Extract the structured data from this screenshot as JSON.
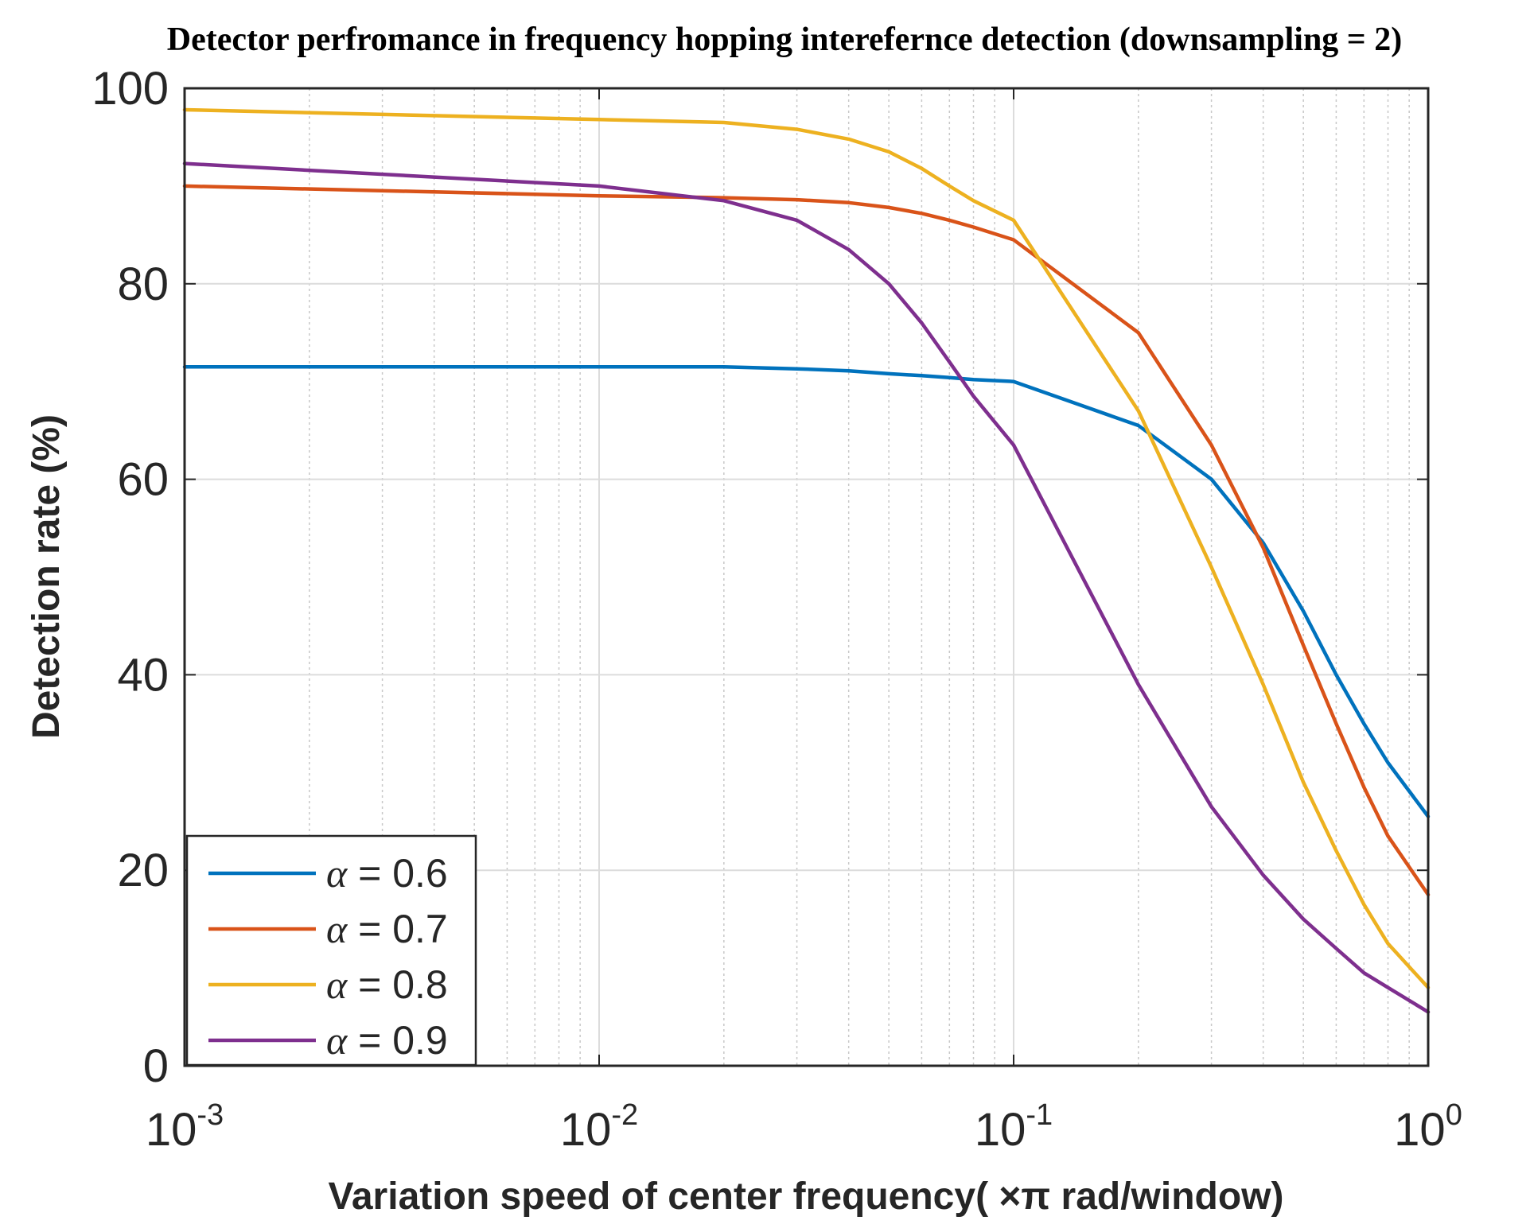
{
  "chart_data": {
    "type": "line",
    "title": "Detector perfromance in frequency hopping interefernce detection (downsampling = 2)",
    "xlabel": "Variation speed of center frequency( ×π rad/window)",
    "ylabel": "Detection rate (%)",
    "xscale": "log",
    "xlim": [
      0.001,
      1
    ],
    "ylim": [
      0,
      100
    ],
    "x_ticks": [
      {
        "base": "10",
        "exp": "-3",
        "value": 0.001
      },
      {
        "base": "10",
        "exp": "-2",
        "value": 0.01
      },
      {
        "base": "10",
        "exp": "-1",
        "value": 0.1
      },
      {
        "base": "10",
        "exp": "0",
        "value": 1
      }
    ],
    "y_ticks": [
      {
        "label": "0",
        "value": 0
      },
      {
        "label": "20",
        "value": 20
      },
      {
        "label": "40",
        "value": 40
      },
      {
        "label": "60",
        "value": 60
      },
      {
        "label": "80",
        "value": 80
      },
      {
        "label": "100",
        "value": 100
      }
    ],
    "grid": true,
    "legend_position": "bottom-left",
    "x": [
      0.001,
      0.01,
      0.02,
      0.03,
      0.04,
      0.05,
      0.06,
      0.07,
      0.08,
      0.1,
      0.2,
      0.3,
      0.4,
      0.5,
      0.6,
      0.7,
      0.8,
      1.0
    ],
    "series": [
      {
        "name": "α = 0.6",
        "symbol": "α",
        "suffix": " = 0.6",
        "color": "#0072BD",
        "values": [
          71.5,
          71.5,
          71.5,
          71.3,
          71.1,
          70.8,
          70.6,
          70.4,
          70.2,
          70.0,
          65.5,
          60.0,
          53.5,
          46.5,
          40.0,
          35.0,
          31.0,
          25.5
        ]
      },
      {
        "name": "α = 0.7",
        "symbol": "α",
        "suffix": " = 0.7",
        "color": "#D95319",
        "values": [
          90.0,
          89.0,
          88.8,
          88.6,
          88.3,
          87.8,
          87.2,
          86.5,
          85.8,
          84.5,
          75.0,
          63.5,
          53.0,
          43.0,
          35.0,
          28.5,
          23.5,
          17.5
        ]
      },
      {
        "name": "α = 0.8",
        "symbol": "α",
        "suffix": " = 0.8",
        "color": "#EDB120",
        "values": [
          97.8,
          96.8,
          96.5,
          95.8,
          94.8,
          93.5,
          91.8,
          90.0,
          88.5,
          86.5,
          67.0,
          51.0,
          39.0,
          29.0,
          22.0,
          16.5,
          12.5,
          8.0
        ]
      },
      {
        "name": "α = 0.9",
        "symbol": "α",
        "suffix": " = 0.9",
        "color": "#7E2F8E",
        "values": [
          92.3,
          90.0,
          88.5,
          86.5,
          83.5,
          80.0,
          76.0,
          72.0,
          68.5,
          63.5,
          39.0,
          26.5,
          19.5,
          15.0,
          12.0,
          9.5,
          8.0,
          5.5
        ]
      }
    ]
  }
}
